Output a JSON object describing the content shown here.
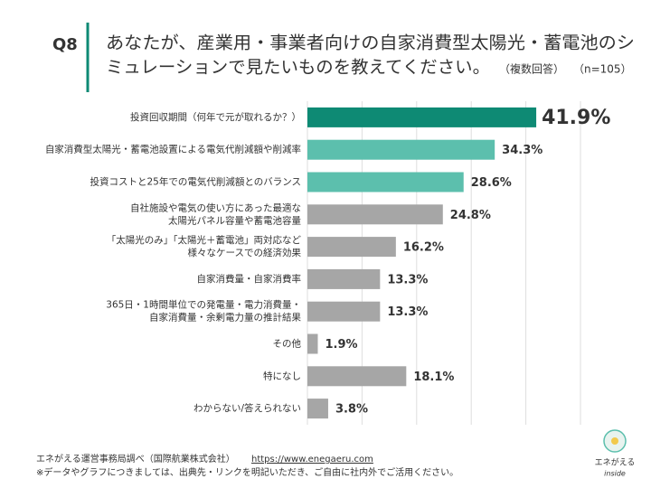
{
  "header": {
    "question": "Q8",
    "title_lines": [
      "あなたが、産業用・事業者向けの自家消費型太陽光・蓄電池のシ",
      "ミュレーションで見たいものを教えてください。"
    ],
    "note_multi": "（複数回答）",
    "note_n": "（n=105）"
  },
  "chart_data": {
    "type": "hbar",
    "categories": [
      [
        "投資回収期間（何年で元が取れるか？）"
      ],
      [
        "自家消費型太陽光・蓄電池設置による電気代削減額や削減率"
      ],
      [
        "投資コストと25年での電気代削減額とのバランス"
      ],
      [
        "自社施設や電気の使い方にあった最適な",
        "太陽光パネル容量や蓄電池容量"
      ],
      [
        "「太陽光のみ」「太陽光＋蓄電池」両対応など",
        "様々なケースでの経済効果"
      ],
      [
        "自家消費量・自家消費率"
      ],
      [
        "365日・1時間単位での発電量・電力消費量・",
        "自家消費量・余剰電力量の推計結果"
      ],
      [
        "その他"
      ],
      [
        "特になし"
      ],
      [
        "わからない/答えられない"
      ]
    ],
    "values": [
      41.9,
      34.3,
      28.6,
      24.8,
      16.2,
      13.3,
      13.3,
      1.9,
      18.1,
      3.8
    ],
    "value_labels": [
      "41.9%",
      "34.3%",
      "28.6%",
      "24.8%",
      "16.2%",
      "13.3%",
      "13.3%",
      "1.9%",
      "18.1%",
      "3.8%"
    ],
    "colors": [
      "#0e8a74",
      "#5cbfad",
      "#5cbfad",
      "#a6a6a6",
      "#a6a6a6",
      "#a6a6a6",
      "#a6a6a6",
      "#a6a6a6",
      "#a6a6a6",
      "#a6a6a6"
    ],
    "xlim": [
      0,
      50
    ],
    "xticks": [
      0,
      10,
      20,
      30,
      40,
      50
    ],
    "grid": true,
    "show_tick_labels": false
  },
  "footer": {
    "source": "エネがえる運営事務局調べ（国際航業株式会社）",
    "url": "https://www.enegaeru.com",
    "note": "※データやグラフにつきましては、出典先・リンクを明記いただき、ご自由に社内外でご活用ください。",
    "logo_name": "エネがえる",
    "logo_sub": "inside"
  }
}
